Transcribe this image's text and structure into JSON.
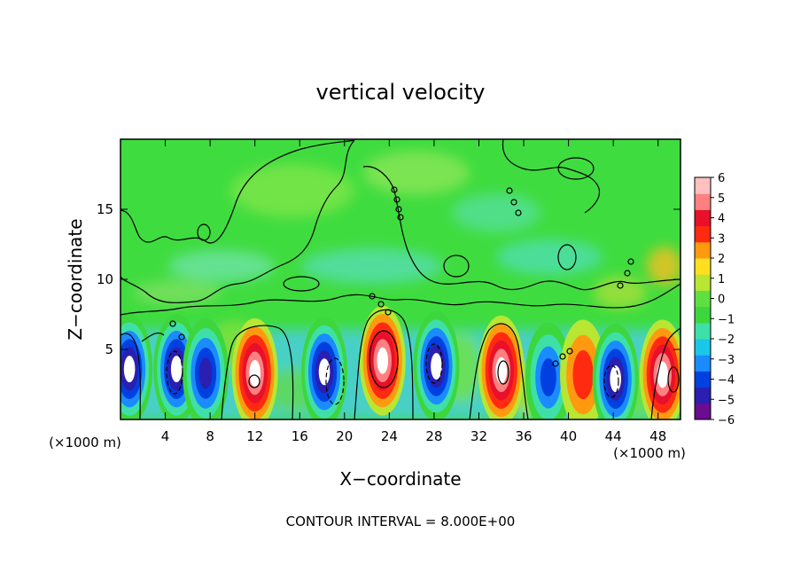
{
  "chart_data": {
    "type": "heatmap",
    "title": "vertical velocity",
    "xlabel": "X−coordinate",
    "ylabel": "Z−coordinate",
    "x_unit_left": "(×1000 m)",
    "x_unit_right": "(×1000 m)",
    "footer": "CONTOUR INTERVAL = 8.000E+00",
    "xlim": [
      0,
      50
    ],
    "ylim": [
      0,
      20
    ],
    "x_ticks": [
      4,
      8,
      12,
      16,
      20,
      24,
      28,
      32,
      36,
      40,
      44,
      48
    ],
    "y_ticks": [
      5,
      10,
      15
    ],
    "colorbar": {
      "min": -6,
      "max": 6,
      "ticks": [
        "6",
        "5",
        "4",
        "3",
        "2",
        "1",
        "0",
        "−1",
        "−2",
        "−3",
        "−4",
        "−5",
        "−6"
      ],
      "colors": [
        "#6a0d91",
        "#2a1fb0",
        "#0040e0",
        "#1a8cff",
        "#19c8e8",
        "#3ee0a8",
        "#3dd63d",
        "#60e040",
        "#b8e632",
        "#ffe020",
        "#ff9a10",
        "#ff2a10",
        "#e8102a",
        "#ff8080",
        "#ffc0c0"
      ]
    },
    "cells": [
      {
        "x": 0.8,
        "z": 3.6,
        "w": -6
      },
      {
        "x": 5.0,
        "z": 3.6,
        "w": -6
      },
      {
        "x": 7.6,
        "z": 3.3,
        "w": -5
      },
      {
        "x": 12.0,
        "z": 3.3,
        "w": 6
      },
      {
        "x": 18.2,
        "z": 3.4,
        "w": -6
      },
      {
        "x": 23.4,
        "z": 4.2,
        "w": 6
      },
      {
        "x": 28.2,
        "z": 3.8,
        "w": -6
      },
      {
        "x": 34.0,
        "z": 3.5,
        "w": 6
      },
      {
        "x": 38.2,
        "z": 3.0,
        "w": -4
      },
      {
        "x": 41.3,
        "z": 3.2,
        "w": 3
      },
      {
        "x": 44.2,
        "z": 2.9,
        "w": -6
      },
      {
        "x": 48.4,
        "z": 3.2,
        "w": 6
      }
    ]
  }
}
